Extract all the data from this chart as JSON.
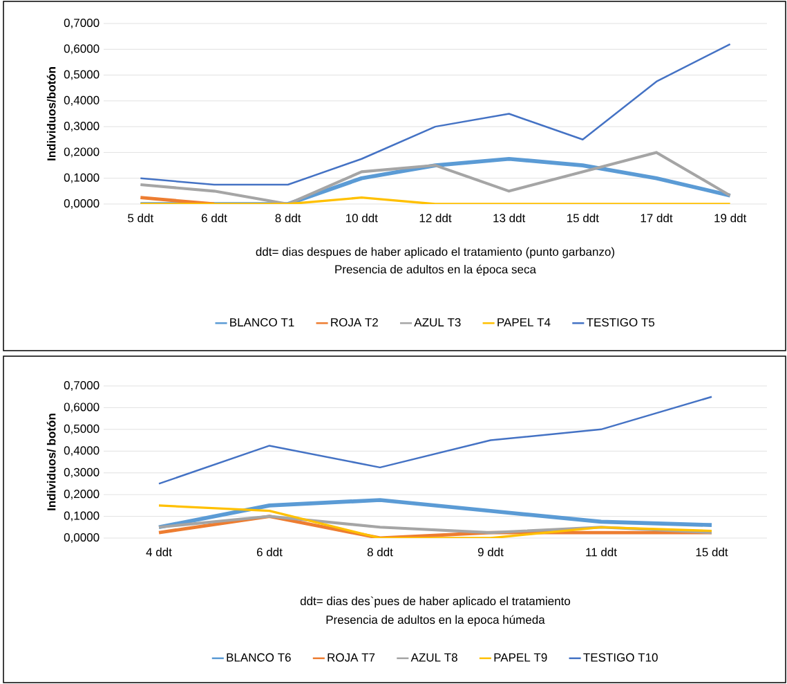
{
  "chart_data": [
    {
      "type": "line",
      "title": "Presencia de adultos en la época seca",
      "xlabel": "ddt= dias despues de haber aplicado el tratamiento (punto garbanzo)",
      "ylabel": "Individuos/botón",
      "categories": [
        "5 ddt",
        "6 ddt",
        "8 ddt",
        "10 ddt",
        "12 ddt",
        "13 ddt",
        "15 ddt",
        "17 ddt",
        "19 ddt"
      ],
      "series": [
        {
          "name": "BLANCO T1",
          "color": "#5b9bd5",
          "values": [
            0,
            0,
            0,
            0.1,
            0.15,
            0.175,
            0.15,
            0.1,
            0.033
          ]
        },
        {
          "name": "ROJA T2",
          "color": "#ed7d31",
          "values": [
            0.025,
            0,
            null,
            null,
            null,
            null,
            null,
            null,
            null
          ]
        },
        {
          "name": "AZUL T3",
          "color": "#a5a5a5",
          "values": [
            0.075,
            0.05,
            0,
            0.125,
            0.15,
            0.05,
            0.125,
            0.2,
            0.033
          ]
        },
        {
          "name": "PAPEL T4",
          "color": "#ffc000",
          "values": [
            0,
            0,
            0,
            0.025,
            0,
            0,
            0,
            0,
            0
          ]
        },
        {
          "name": "TESTIGO T5",
          "color": "#4472c4",
          "values": [
            0.1,
            0.075,
            0.075,
            0.175,
            0.3,
            0.35,
            0.25,
            0.475,
            0.62
          ]
        }
      ],
      "ylim": [
        0,
        0.7
      ],
      "yticks": [
        {
          "value": 0,
          "label": "0,0000"
        },
        {
          "value": 0.1,
          "label": "0,1000"
        },
        {
          "value": 0.2,
          "label": "0,2000"
        },
        {
          "value": 0.3,
          "label": "0,3000"
        },
        {
          "value": 0.4,
          "label": "0,4000"
        },
        {
          "value": 0.5,
          "label": "0,5000"
        },
        {
          "value": 0.6,
          "label": "0,6000"
        },
        {
          "value": 0.7,
          "label": "0,7000"
        }
      ],
      "grid": "y",
      "legend": "bottom"
    },
    {
      "type": "line",
      "title": "Presencia de adultos en la epoca húmeda",
      "xlabel": "ddt= dias des`pues de haber aplicado el tratamiento",
      "ylabel": "Individuos/ botón",
      "categories": [
        "4 ddt",
        "6 ddt",
        "8 ddt",
        "9 ddt",
        "11 ddt",
        "15 ddt"
      ],
      "series": [
        {
          "name": "BLANCO T6",
          "color": "#5b9bd5",
          "values": [
            0.05,
            0.15,
            0.175,
            0.125,
            0.075,
            0.06
          ]
        },
        {
          "name": "ROJA T7",
          "color": "#ed7d31",
          "values": [
            0.025,
            0.1,
            0,
            0.025,
            0.025,
            0.025
          ]
        },
        {
          "name": "AZUL T8",
          "color": "#a5a5a5",
          "values": [
            0.05,
            0.1,
            0.05,
            0.025,
            0.05,
            0.025
          ]
        },
        {
          "name": "PAPEL T9",
          "color": "#ffc000",
          "values": [
            0.15,
            0.125,
            0,
            0,
            0.05,
            0.033
          ]
        },
        {
          "name": "TESTIGO T10",
          "color": "#4472c4",
          "values": [
            0.25,
            0.425,
            0.325,
            0.45,
            0.5,
            0.65
          ]
        }
      ],
      "ylim": [
        0,
        0.7
      ],
      "yticks": [
        {
          "value": 0,
          "label": "0,0000"
        },
        {
          "value": 0.1,
          "label": "0,1000"
        },
        {
          "value": 0.2,
          "label": "0,2000"
        },
        {
          "value": 0.3,
          "label": "0,3000"
        },
        {
          "value": 0.4,
          "label": "0,4000"
        },
        {
          "value": 0.5,
          "label": "0,5000"
        },
        {
          "value": 0.6,
          "label": "0,6000"
        },
        {
          "value": 0.7,
          "label": "0,7000"
        }
      ],
      "grid": "y",
      "legend": "bottom"
    }
  ]
}
